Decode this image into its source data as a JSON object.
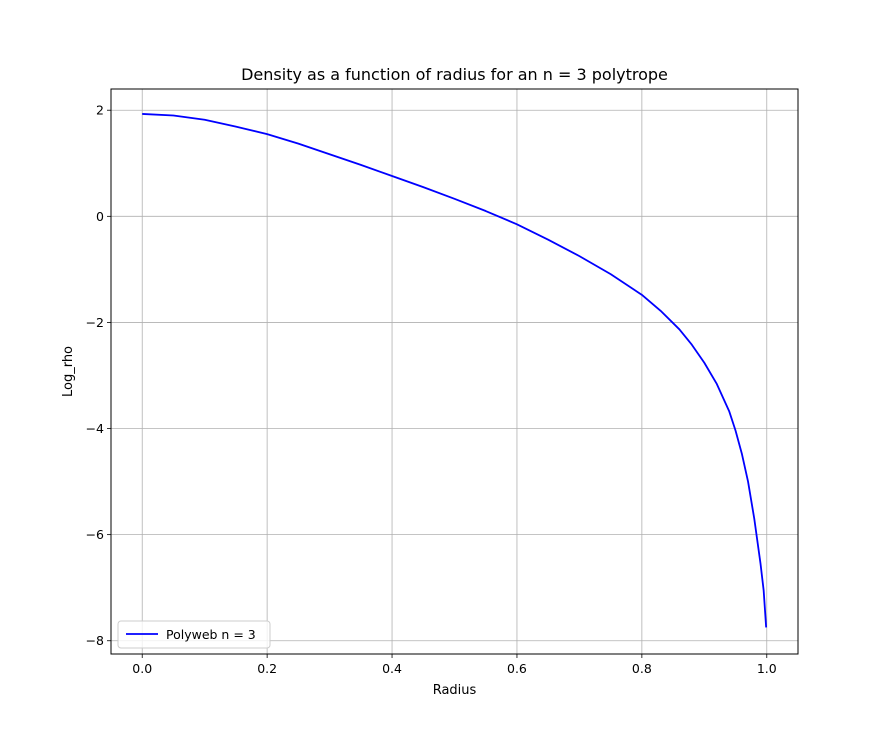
{
  "chart_data": {
    "type": "line",
    "title": "Density as a function of radius for an n = 3 polytrope",
    "xlabel": "Radius",
    "ylabel": "Log_rho",
    "xlim": [
      -0.05,
      1.05
    ],
    "ylim": [
      -8.25,
      2.4
    ],
    "xticks": [
      0.0,
      0.2,
      0.4,
      0.6,
      0.8,
      1.0
    ],
    "xtick_labels": [
      "0.0",
      "0.2",
      "0.4",
      "0.6",
      "0.8",
      "1.0"
    ],
    "yticks": [
      2,
      0,
      -2,
      -4,
      -6,
      -8
    ],
    "ytick_labels": [
      "2",
      "0",
      "−2",
      "−4",
      "−6",
      "−8"
    ],
    "grid": true,
    "legend_position": "lower-left",
    "series": [
      {
        "name": "Polyweb n = 3",
        "color": "#0000ff",
        "x": [
          0.0,
          0.05,
          0.1,
          0.15,
          0.2,
          0.25,
          0.3,
          0.35,
          0.4,
          0.45,
          0.5,
          0.55,
          0.6,
          0.65,
          0.7,
          0.75,
          0.8,
          0.83,
          0.86,
          0.88,
          0.9,
          0.92,
          0.94,
          0.95,
          0.96,
          0.97,
          0.98,
          0.99,
          0.995,
          0.999
        ],
        "y": [
          1.93,
          1.9,
          1.82,
          1.69,
          1.55,
          1.37,
          1.17,
          0.97,
          0.76,
          0.55,
          0.33,
          0.1,
          -0.15,
          -0.44,
          -0.75,
          -1.09,
          -1.48,
          -1.78,
          -2.13,
          -2.42,
          -2.76,
          -3.16,
          -3.68,
          -4.04,
          -4.47,
          -5.0,
          -5.7,
          -6.55,
          -7.05,
          -7.75
        ]
      }
    ]
  }
}
